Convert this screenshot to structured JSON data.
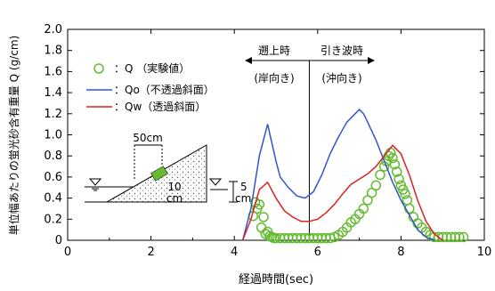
{
  "chart_data": {
    "type": "line",
    "xlabel": "経過時間(sec)",
    "ylabel": "単位幅あたりの蛍光砂含有重量 Q (g/cm)",
    "xlim": [
      0,
      10
    ],
    "ylim": [
      0,
      2.0
    ],
    "xticks": [
      "0",
      "2",
      "4",
      "6",
      "8",
      "10"
    ],
    "yticks": [
      "0",
      "0.2",
      "0.4",
      "0.6",
      "0.8",
      "1.0",
      "1.2",
      "1.4",
      "1.6",
      "1.8",
      "2.0"
    ],
    "grid": false,
    "legend_position": "upper-left",
    "series": [
      {
        "name": "：Q （実験値）",
        "type": "scatter",
        "color": "#66bb33",
        "marker": "open-circle",
        "points": [
          [
            4.45,
            0.23
          ],
          [
            4.5,
            0.36
          ],
          [
            4.55,
            0.3
          ],
          [
            4.6,
            0.34
          ],
          [
            4.65,
            0.12
          ],
          [
            4.7,
            0.22
          ],
          [
            4.75,
            0.06
          ],
          [
            4.8,
            0.08
          ],
          [
            4.85,
            0.04
          ],
          [
            4.9,
            0.03
          ],
          [
            4.95,
            0.02
          ],
          [
            5.0,
            0.02
          ],
          [
            5.1,
            0.02
          ],
          [
            5.2,
            0.02
          ],
          [
            5.3,
            0.02
          ],
          [
            5.4,
            0.02
          ],
          [
            5.5,
            0.02
          ],
          [
            5.6,
            0.02
          ],
          [
            5.7,
            0.02
          ],
          [
            5.8,
            0.02
          ],
          [
            5.9,
            0.02
          ],
          [
            6.0,
            0.02
          ],
          [
            6.1,
            0.02
          ],
          [
            6.2,
            0.02
          ],
          [
            6.3,
            0.02
          ],
          [
            6.4,
            0.03
          ],
          [
            6.5,
            0.05
          ],
          [
            6.6,
            0.08
          ],
          [
            6.7,
            0.12
          ],
          [
            6.8,
            0.17
          ],
          [
            6.9,
            0.2
          ],
          [
            7.0,
            0.25
          ],
          [
            7.1,
            0.3
          ],
          [
            7.2,
            0.38
          ],
          [
            7.3,
            0.45
          ],
          [
            7.4,
            0.52
          ],
          [
            7.5,
            0.62
          ],
          [
            7.6,
            0.7
          ],
          [
            7.65,
            0.75
          ],
          [
            7.7,
            0.8
          ],
          [
            7.75,
            0.83
          ],
          [
            7.8,
            0.78
          ],
          [
            7.85,
            0.72
          ],
          [
            7.9,
            0.65
          ],
          [
            7.95,
            0.58
          ],
          [
            8.0,
            0.52
          ],
          [
            8.05,
            0.48
          ],
          [
            8.1,
            0.44
          ],
          [
            8.15,
            0.38
          ],
          [
            8.2,
            0.3
          ],
          [
            8.3,
            0.22
          ],
          [
            8.4,
            0.16
          ],
          [
            8.5,
            0.12
          ],
          [
            8.6,
            0.08
          ],
          [
            8.7,
            0.05
          ],
          [
            8.8,
            0.03
          ],
          [
            8.9,
            0.03
          ],
          [
            9.0,
            0.03
          ],
          [
            9.1,
            0.03
          ],
          [
            9.2,
            0.03
          ],
          [
            9.3,
            0.03
          ],
          [
            9.4,
            0.03
          ],
          [
            9.5,
            0.03
          ]
        ]
      },
      {
        "name": "：Qo（不透過斜面）",
        "type": "line",
        "color": "#3355cc",
        "x": [
          4.2,
          4.4,
          4.6,
          4.8,
          5.0,
          5.1,
          5.3,
          5.5,
          5.7,
          5.9,
          6.1,
          6.3,
          6.5,
          6.7,
          6.9,
          7.0,
          7.1,
          7.2,
          7.4,
          7.6,
          7.8,
          8.0,
          8.2,
          8.4,
          8.6,
          8.8
        ],
        "y": [
          0.0,
          0.3,
          0.8,
          1.1,
          0.75,
          0.6,
          0.5,
          0.42,
          0.4,
          0.46,
          0.62,
          0.82,
          0.98,
          1.12,
          1.2,
          1.24,
          1.2,
          1.12,
          0.95,
          0.75,
          0.55,
          0.38,
          0.24,
          0.1,
          0.03,
          0.0
        ]
      },
      {
        "name": "：Qw（透過斜面）",
        "type": "line",
        "color": "#dd2222",
        "x": [
          4.2,
          4.4,
          4.6,
          4.8,
          5.0,
          5.2,
          5.4,
          5.6,
          5.8,
          6.0,
          6.2,
          6.4,
          6.6,
          6.8,
          7.0,
          7.2,
          7.4,
          7.6,
          7.8,
          8.0,
          8.2,
          8.4,
          8.6,
          8.8,
          9.0
        ],
        "y": [
          0.0,
          0.2,
          0.48,
          0.55,
          0.4,
          0.28,
          0.22,
          0.18,
          0.18,
          0.2,
          0.26,
          0.34,
          0.44,
          0.53,
          0.58,
          0.63,
          0.7,
          0.8,
          0.9,
          0.82,
          0.62,
          0.38,
          0.18,
          0.06,
          0.0
        ]
      }
    ],
    "annotations": {
      "left_direction": [
        "遡上時",
        "(岸向き)"
      ],
      "right_direction": [
        "引き波時",
        "(沖向き)"
      ],
      "divider_x": 5.8,
      "dim_50cm": "50cm",
      "dim_10cm": "10",
      "dim_cm": "cm",
      "dim_5cm": "5",
      "dim_5cm_unit": "cm"
    }
  }
}
